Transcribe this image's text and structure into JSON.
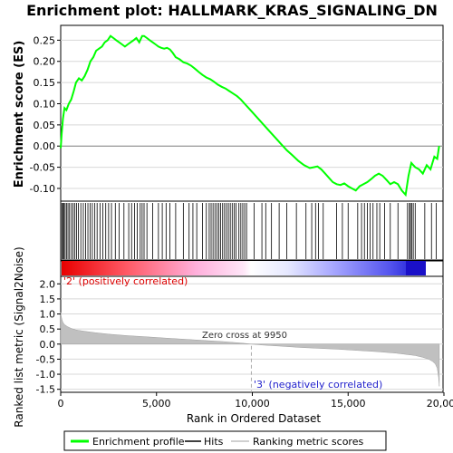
{
  "chart_data": [
    {
      "type": "line",
      "title": "Enrichment plot: HALLMARK_KRAS_SIGNALING_DN",
      "ylabel": "Enrichment score (ES)",
      "xlim": [
        0,
        20000
      ],
      "ylim": [
        -0.13,
        0.285
      ],
      "yticks": [
        0.25,
        0.2,
        0.15,
        0.1,
        0.05,
        0.0,
        -0.05,
        -0.1
      ],
      "ytick_labels": [
        "0.25",
        "0.20",
        "0.15",
        "0.10",
        "0.05",
        "0.00",
        "-0.05",
        "-0.10"
      ],
      "grid": true,
      "series": [
        {
          "name": "Enrichment profile",
          "color": "#00ff00",
          "x": [
            0,
            50,
            120,
            200,
            300,
            420,
            550,
            680,
            800,
            950,
            1100,
            1250,
            1400,
            1550,
            1700,
            1850,
            2000,
            2150,
            2300,
            2450,
            2600,
            2750,
            2900,
            3050,
            3200,
            3350,
            3500,
            3650,
            3800,
            3950,
            4100,
            4250,
            4350,
            4500,
            4650,
            4800,
            4950,
            5100,
            5250,
            5400,
            5550,
            5700,
            5850,
            6000,
            6200,
            6400,
            6600,
            6800,
            7000,
            7200,
            7400,
            7600,
            7800,
            8000,
            8200,
            8400,
            8600,
            8800,
            9000,
            9200,
            9400,
            9600,
            9800,
            10000,
            10300,
            10600,
            10900,
            11200,
            11500,
            11800,
            12100,
            12400,
            12700,
            13000,
            13200,
            13400,
            13600,
            13800,
            14000,
            14200,
            14400,
            14600,
            14800,
            15000,
            15200,
            15400,
            15600,
            15800,
            16000,
            16200,
            16400,
            16600,
            16800,
            17000,
            17200,
            17400,
            17600,
            17800,
            18000,
            18150,
            18300,
            18500,
            18700,
            18900,
            19100,
            19300,
            19500,
            19650,
            19750
          ],
          "y": [
            -0.005,
            0.03,
            0.065,
            0.09,
            0.085,
            0.1,
            0.11,
            0.13,
            0.15,
            0.16,
            0.155,
            0.165,
            0.18,
            0.2,
            0.21,
            0.225,
            0.23,
            0.235,
            0.245,
            0.25,
            0.26,
            0.255,
            0.25,
            0.245,
            0.24,
            0.235,
            0.24,
            0.245,
            0.25,
            0.255,
            0.245,
            0.26,
            0.26,
            0.255,
            0.25,
            0.245,
            0.24,
            0.235,
            0.232,
            0.23,
            0.232,
            0.228,
            0.22,
            0.21,
            0.205,
            0.198,
            0.195,
            0.19,
            0.183,
            0.175,
            0.168,
            0.162,
            0.158,
            0.152,
            0.145,
            0.14,
            0.136,
            0.13,
            0.124,
            0.118,
            0.11,
            0.1,
            0.09,
            0.08,
            0.065,
            0.05,
            0.035,
            0.02,
            0.005,
            -0.01,
            -0.022,
            -0.035,
            -0.045,
            -0.052,
            -0.05,
            -0.048,
            -0.055,
            -0.065,
            -0.075,
            -0.085,
            -0.09,
            -0.092,
            -0.088,
            -0.095,
            -0.1,
            -0.105,
            -0.095,
            -0.09,
            -0.085,
            -0.078,
            -0.07,
            -0.065,
            -0.07,
            -0.08,
            -0.09,
            -0.085,
            -0.09,
            -0.105,
            -0.115,
            -0.07,
            -0.04,
            -0.05,
            -0.055,
            -0.065,
            -0.045,
            -0.055,
            -0.025,
            -0.03,
            0.0
          ]
        }
      ]
    },
    {
      "type": "scatter",
      "series": [
        {
          "name": "Hits",
          "color": "#000000",
          "x": [
            60,
            110,
            170,
            230,
            300,
            380,
            460,
            560,
            650,
            740,
            830,
            920,
            1050,
            1180,
            1300,
            1420,
            1540,
            1650,
            1780,
            1900,
            2050,
            2200,
            2350,
            2500,
            2650,
            2850,
            3050,
            3300,
            3550,
            3700,
            3850,
            4000,
            4150,
            4250,
            4350,
            4500,
            4800,
            5100,
            5300,
            5500,
            5700,
            6000,
            6400,
            6700,
            6900,
            7100,
            7400,
            7600,
            7750,
            7850,
            7950,
            8050,
            8150,
            8250,
            8350,
            8450,
            8550,
            8650,
            8750,
            8850,
            8950,
            9050,
            9150,
            9300,
            9400,
            9500,
            9600,
            9700,
            10100,
            10500,
            10700,
            11000,
            11400,
            11800,
            12300,
            12800,
            13100,
            13300,
            13450,
            13700,
            14400,
            14700,
            15000,
            15500,
            15700,
            15850,
            16000,
            16150,
            16300,
            16500,
            16650,
            16900,
            17200,
            17600,
            18100,
            18200,
            18250,
            18320,
            18400,
            18500,
            19000,
            19350,
            19600
          ]
        }
      ]
    },
    {
      "type": "area",
      "title": "",
      "ylabel": "Ranked list metric (Signal2Noise)",
      "xlabel": "Rank in Ordered Dataset",
      "xlim": [
        0,
        20000
      ],
      "ylim": [
        -1.6,
        2.25
      ],
      "xticks": [
        0,
        5000,
        10000,
        15000,
        20000
      ],
      "xtick_labels": [
        "0",
        "5,000",
        "10,000",
        "15,000",
        "20,000"
      ],
      "yticks": [
        2.0,
        1.5,
        1.0,
        0.5,
        0.0,
        -0.5,
        -1.0,
        -1.5
      ],
      "ytick_labels": [
        "2.0",
        "1.5",
        "1.0",
        "0.5",
        "0.0",
        "-0.5",
        "-1.0",
        "-1.5"
      ],
      "grid": true,
      "series": [
        {
          "name": "Ranking metric scores",
          "color": "#c0c0c0",
          "x": [
            0,
            20,
            60,
            120,
            200,
            350,
            550,
            800,
            1200,
            1800,
            2500,
            3500,
            4500,
            5500,
            6500,
            7500,
            8500,
            9500,
            9950,
            10500,
            11500,
            12500,
            13500,
            14500,
            15500,
            16500,
            17500,
            18000,
            18500,
            18900,
            19200,
            19400,
            19550,
            19650,
            19720,
            19760
          ],
          "y": [
            1.05,
            0.95,
            0.82,
            0.72,
            0.65,
            0.58,
            0.52,
            0.47,
            0.43,
            0.38,
            0.33,
            0.28,
            0.24,
            0.2,
            0.16,
            0.12,
            0.08,
            0.03,
            0.0,
            -0.03,
            -0.07,
            -0.11,
            -0.14,
            -0.17,
            -0.21,
            -0.25,
            -0.3,
            -0.34,
            -0.38,
            -0.44,
            -0.5,
            -0.57,
            -0.66,
            -0.8,
            -1.1,
            -1.4
          ]
        }
      ],
      "annotations": {
        "zero_cross": "Zero cross at 9950",
        "zero_cross_x": 9950,
        "positive_label": "'2' (positively correlated)",
        "negative_label": "'3' (negatively correlated)"
      }
    }
  ],
  "legend": {
    "items": [
      {
        "label": "Enrichment profile",
        "color": "#00ff00"
      },
      {
        "label": "Hits",
        "color": "#000000"
      },
      {
        "label": "Ranking metric scores",
        "color": "#c0c0c0"
      }
    ]
  },
  "colors": {
    "positive": "#ff0000",
    "negative": "#0000ff",
    "profile": "#00ff00",
    "zero_line": "#888888",
    "grid": "#d8d8d8"
  }
}
